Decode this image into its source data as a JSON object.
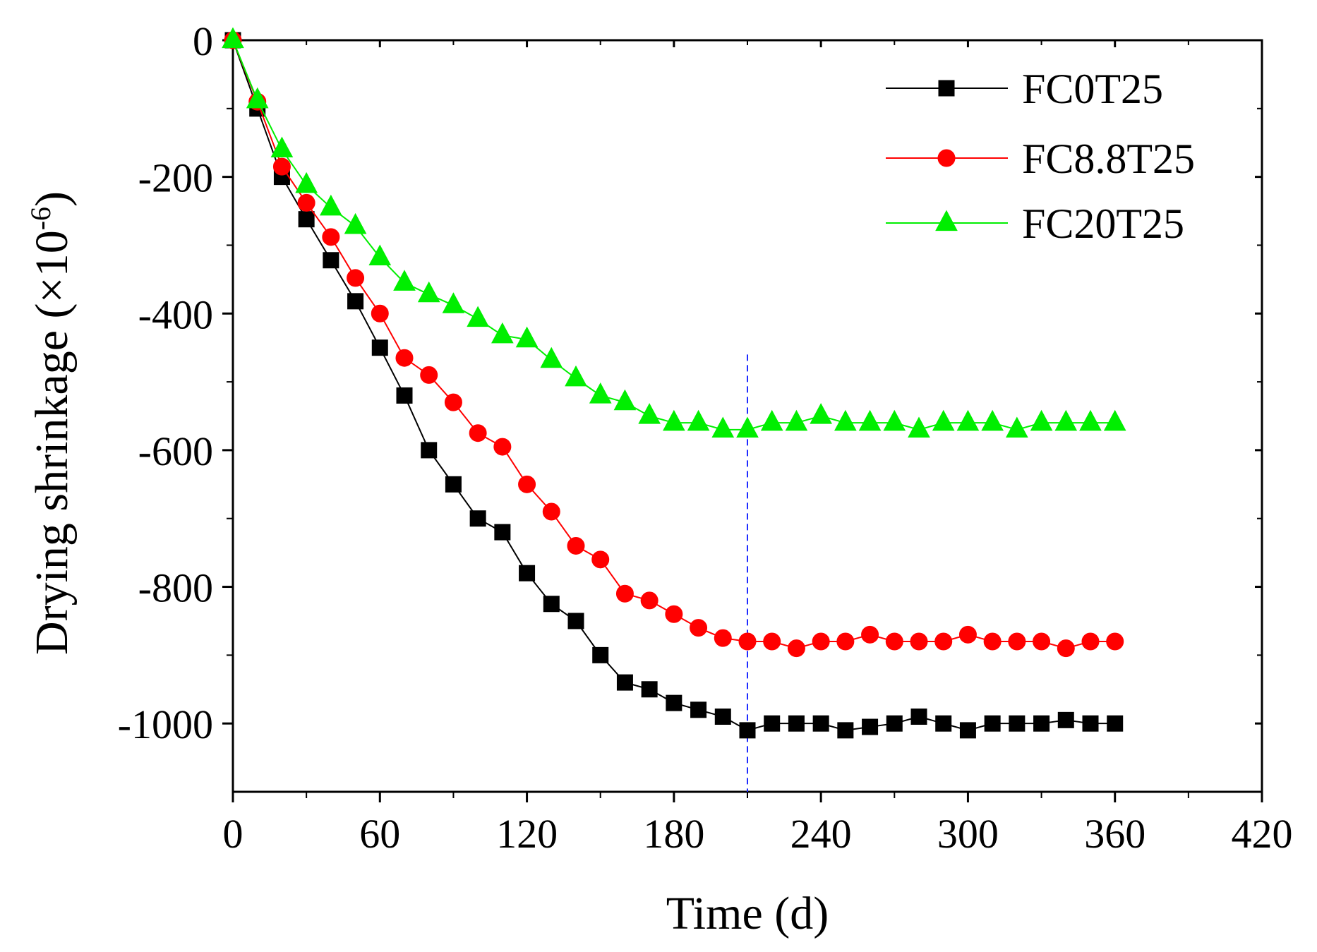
{
  "chart_data": {
    "type": "line",
    "title": "",
    "xlabel": "Time (d)",
    "ylabel": {
      "main": "Drying shrinkage (×10",
      "sup": "-6",
      "close": ")"
    },
    "xlim": [
      0,
      420
    ],
    "ylim": [
      -1100,
      0
    ],
    "xticks": [
      0,
      60,
      120,
      180,
      240,
      300,
      360,
      420
    ],
    "yticks": [
      0,
      -200,
      -400,
      -600,
      -800,
      -1000
    ],
    "reference_line": {
      "x": 210,
      "y_from": -1100,
      "y_to": -460,
      "color": "#1f2cff",
      "style": "dashed"
    },
    "legend": {
      "position": "top-right",
      "entries": [
        "FC0T25",
        "FC8.8T25",
        "FC20T25"
      ]
    },
    "series": [
      {
        "name": "FC0T25",
        "color": "#000000",
        "marker": "square",
        "x": [
          0,
          10,
          20,
          30,
          40,
          50,
          60,
          70,
          80,
          90,
          100,
          110,
          120,
          130,
          140,
          150,
          160,
          170,
          180,
          190,
          200,
          210,
          220,
          230,
          240,
          250,
          260,
          270,
          280,
          290,
          300,
          310,
          320,
          330,
          340,
          350,
          360
        ],
        "y": [
          0,
          -100,
          -200,
          -262,
          -322,
          -382,
          -450,
          -520,
          -600,
          -650,
          -700,
          -720,
          -780,
          -825,
          -850,
          -900,
          -940,
          -950,
          -970,
          -980,
          -990,
          -1010,
          -1000,
          -1000,
          -1000,
          -1010,
          -1005,
          -1000,
          -990,
          -1000,
          -1010,
          -1000,
          -1000,
          -1000,
          -995,
          -1000,
          -1000
        ]
      },
      {
        "name": "FC8.8T25",
        "color": "#ff0000",
        "marker": "circle",
        "x": [
          0,
          10,
          20,
          30,
          40,
          50,
          60,
          70,
          80,
          90,
          100,
          110,
          120,
          130,
          140,
          150,
          160,
          170,
          180,
          190,
          200,
          210,
          220,
          230,
          240,
          250,
          260,
          270,
          280,
          290,
          300,
          310,
          320,
          330,
          340,
          350,
          360
        ],
        "y": [
          0,
          -90,
          -185,
          -238,
          -288,
          -348,
          -400,
          -465,
          -490,
          -530,
          -575,
          -595,
          -650,
          -690,
          -740,
          -760,
          -810,
          -820,
          -840,
          -860,
          -875,
          -880,
          -880,
          -890,
          -880,
          -880,
          -870,
          -880,
          -880,
          -880,
          -870,
          -880,
          -880,
          -880,
          -890,
          -880,
          -880
        ]
      },
      {
        "name": "FC20T25",
        "color": "#00ee00",
        "marker": "triangle",
        "x": [
          0,
          10,
          20,
          30,
          40,
          50,
          60,
          70,
          80,
          90,
          100,
          110,
          120,
          130,
          140,
          150,
          160,
          170,
          180,
          190,
          200,
          210,
          220,
          230,
          240,
          250,
          260,
          270,
          280,
          290,
          300,
          310,
          320,
          330,
          340,
          350,
          360
        ],
        "y": [
          0,
          -88,
          -160,
          -212,
          -245,
          -272,
          -318,
          -355,
          -372,
          -388,
          -408,
          -432,
          -438,
          -468,
          -495,
          -520,
          -530,
          -550,
          -560,
          -560,
          -570,
          -570,
          -560,
          -560,
          -550,
          -560,
          -560,
          -560,
          -570,
          -560,
          -560,
          -560,
          -570,
          -560,
          -560,
          -560,
          -560
        ]
      }
    ]
  }
}
